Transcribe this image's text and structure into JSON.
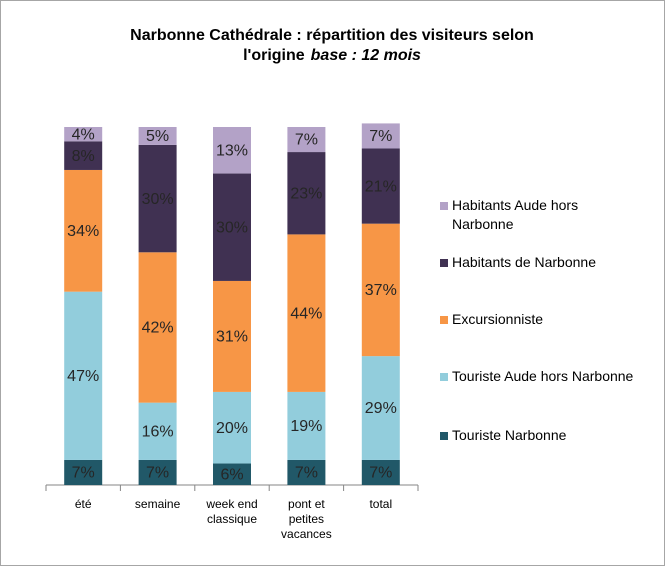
{
  "chart_data": {
    "type": "stacked_bar",
    "title": "Narbonne Cathédrale : répartition des visiteurs selon l'origine",
    "subtitle": "base : 12 mois",
    "categories": [
      "été",
      "semaine",
      "week end classique",
      "pont et petites vacances",
      "total"
    ],
    "ylim": [
      0,
      100
    ],
    "series": [
      {
        "name": "Touriste Narbonne",
        "color": "#215868",
        "values": [
          7,
          7,
          6,
          7,
          7
        ],
        "value_labels": [
          "7%",
          "7%",
          "6%",
          "7%",
          "7%"
        ]
      },
      {
        "name": "Touriste Aude hors Narbonne",
        "color": "#92cddc",
        "values": [
          47,
          16,
          20,
          19,
          29
        ],
        "value_labels": [
          "47%",
          "16%",
          "20%",
          "19%",
          "29%"
        ]
      },
      {
        "name": "Excursionniste",
        "color": "#f79646",
        "values": [
          34,
          42,
          31,
          44,
          37
        ],
        "value_labels": [
          "34%",
          "42%",
          "31%",
          "44%",
          "37%"
        ]
      },
      {
        "name": "Habitants de Narbonne",
        "color": "#403152",
        "values": [
          8,
          30,
          30,
          23,
          21
        ],
        "value_labels": [
          "8%",
          "30%",
          "30%",
          "23%",
          "21%"
        ]
      },
      {
        "name": "Habitants Aude hors Narbonne",
        "color": "#b3a2c7",
        "values": [
          4,
          5,
          13,
          7,
          7
        ],
        "value_labels": [
          "4%",
          "5%",
          "13%",
          "7%",
          "7%"
        ]
      }
    ]
  }
}
